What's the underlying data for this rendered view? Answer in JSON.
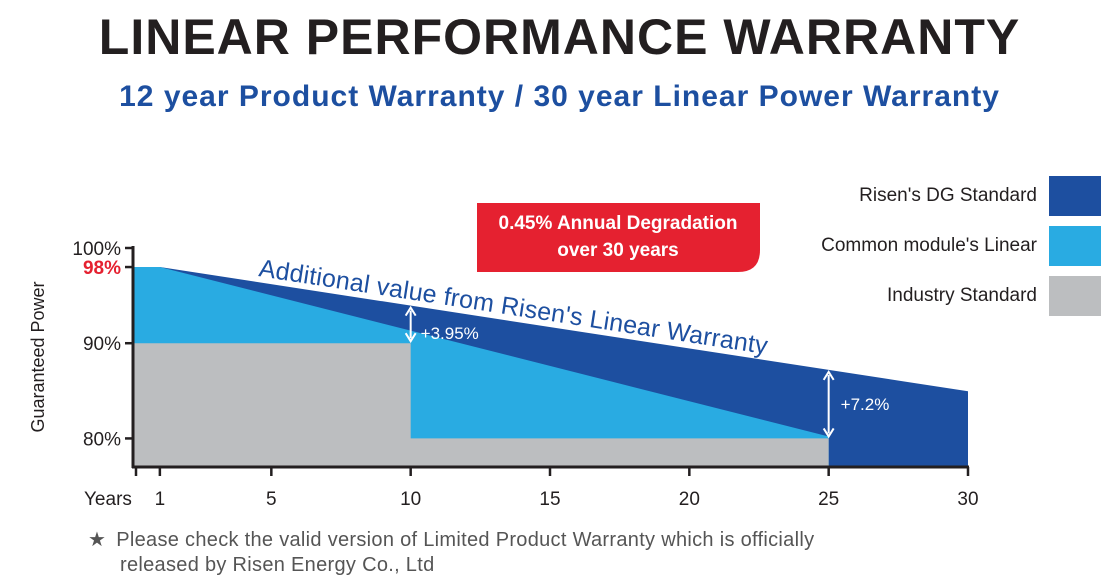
{
  "header": {
    "title": "LINEAR PERFORMANCE WARRANTY",
    "subtitle": "12 year Product Warranty / 30 year Linear Power Warranty"
  },
  "badge": {
    "line1": "0.45% Annual Degradation",
    "line2": "over 30 years",
    "color": "#e52130"
  },
  "annotations": {
    "additional_value": "Additional value from Risen's Linear Warranty",
    "delta_10": "+3.95%",
    "delta_25": "+7.2%"
  },
  "footnote": {
    "star": "★",
    "line1": "Please check the valid version of Limited Product Warranty which is officially",
    "line2": "released by Risen Energy Co., Ltd"
  },
  "colors": {
    "dg_standard": "#1d4fa0",
    "common_linear": "#29abe2",
    "industry_standard": "#bcbec0",
    "highlight_red": "#e52130"
  },
  "chart_data": {
    "type": "area",
    "ylabel": "Guaranteed Power",
    "xlabel": "Years",
    "x_ticks": [
      1,
      5,
      10,
      15,
      20,
      25,
      30
    ],
    "x_tick_labels": [
      "1",
      "5",
      "10",
      "15",
      "20",
      "25",
      "30"
    ],
    "y_ticks": [
      80,
      90,
      100
    ],
    "y_tick_labels": [
      "80%",
      "90%",
      "100%"
    ],
    "y_highlight": {
      "value": 98,
      "label": "98%"
    },
    "xlim": [
      0,
      30
    ],
    "ylim": [
      77,
      100
    ],
    "series": [
      {
        "name": "Risen's DG Standard",
        "color": "#1d4fa0",
        "points": [
          [
            0,
            98
          ],
          [
            1,
            98
          ],
          [
            30,
            84.95
          ]
        ]
      },
      {
        "name": "Common module's Linear",
        "color": "#29abe2",
        "points": [
          [
            0,
            98
          ],
          [
            1,
            98
          ],
          [
            25,
            80.2
          ]
        ]
      },
      {
        "name": "Industry Standard",
        "color": "#bcbec0",
        "steps": [
          [
            0,
            90
          ],
          [
            10,
            90
          ],
          [
            10,
            80
          ],
          [
            25,
            80
          ]
        ]
      }
    ],
    "legend": "top-right"
  }
}
